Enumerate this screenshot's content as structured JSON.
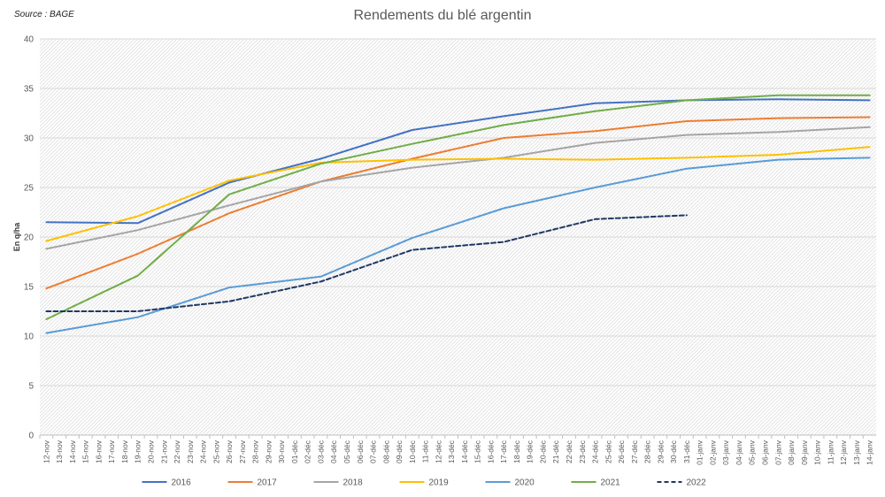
{
  "source": "Source : BAGE",
  "chart_data": {
    "type": "line",
    "title": "Rendements du blé argentin",
    "xlabel": "",
    "ylabel": "En q/ha",
    "ylim": [
      0,
      40
    ],
    "yticks": [
      0,
      5,
      10,
      15,
      20,
      25,
      30,
      35,
      40
    ],
    "grid": true,
    "legend_position": "bottom",
    "categories": [
      "12-nov",
      "13-nov",
      "14-nov",
      "15-nov",
      "16-nov",
      "17-nov",
      "18-nov",
      "19-nov",
      "20-nov",
      "21-nov",
      "22-nov",
      "23-nov",
      "24-nov",
      "25-nov",
      "26-nov",
      "27-nov",
      "28-nov",
      "29-nov",
      "30-nov",
      "01-déc",
      "02-déc",
      "03-déc",
      "04-déc",
      "05-déc",
      "06-déc",
      "07-déc",
      "08-déc",
      "09-déc",
      "10-déc",
      "11-déc",
      "12-déc",
      "13-déc",
      "14-déc",
      "15-déc",
      "16-déc",
      "17-déc",
      "18-déc",
      "19-déc",
      "20-déc",
      "21-déc",
      "22-déc",
      "23-déc",
      "24-déc",
      "25-déc",
      "26-déc",
      "27-déc",
      "28-déc",
      "29-déc",
      "30-déc",
      "31-déc",
      "01-janv",
      "02-janv",
      "03-janv",
      "04-janv",
      "05-janv",
      "06-janv",
      "07-janv",
      "08-janv",
      "09-janv",
      "10-janv",
      "11-janv",
      "12-janv",
      "13-janv",
      "14-janv"
    ],
    "series": [
      {
        "name": "2016",
        "color": "#4472C4",
        "dash": false,
        "points": [
          [
            "12-nov",
            21.5
          ],
          [
            "19-nov",
            21.4
          ],
          [
            "26-nov",
            25.5
          ],
          [
            "03-déc",
            27.9
          ],
          [
            "10-déc",
            30.8
          ],
          [
            "17-déc",
            32.2
          ],
          [
            "24-déc",
            33.5
          ],
          [
            "31-déc",
            33.8
          ],
          [
            "07-janv",
            33.9
          ],
          [
            "14-janv",
            33.8
          ]
        ]
      },
      {
        "name": "2017",
        "color": "#ED7D31",
        "dash": false,
        "points": [
          [
            "12-nov",
            14.8
          ],
          [
            "19-nov",
            18.3
          ],
          [
            "26-nov",
            22.4
          ],
          [
            "03-déc",
            25.6
          ],
          [
            "10-déc",
            27.9
          ],
          [
            "17-déc",
            30.0
          ],
          [
            "24-déc",
            30.7
          ],
          [
            "31-déc",
            31.7
          ],
          [
            "07-janv",
            32.0
          ],
          [
            "14-janv",
            32.1
          ]
        ]
      },
      {
        "name": "2018",
        "color": "#A5A5A5",
        "dash": false,
        "points": [
          [
            "12-nov",
            18.8
          ],
          [
            "19-nov",
            20.7
          ],
          [
            "26-nov",
            23.2
          ],
          [
            "03-déc",
            25.6
          ],
          [
            "10-déc",
            27.0
          ],
          [
            "17-déc",
            28.0
          ],
          [
            "24-déc",
            29.5
          ],
          [
            "31-déc",
            30.3
          ],
          [
            "07-janv",
            30.6
          ],
          [
            "14-janv",
            31.1
          ]
        ]
      },
      {
        "name": "2019",
        "color": "#FFC000",
        "dash": false,
        "points": [
          [
            "12-nov",
            19.6
          ],
          [
            "19-nov",
            22.1
          ],
          [
            "26-nov",
            25.7
          ],
          [
            "03-déc",
            27.5
          ],
          [
            "10-déc",
            27.8
          ],
          [
            "17-déc",
            27.9
          ],
          [
            "24-déc",
            27.8
          ],
          [
            "31-déc",
            28.0
          ],
          [
            "07-janv",
            28.3
          ],
          [
            "14-janv",
            29.1
          ]
        ]
      },
      {
        "name": "2020",
        "color": "#5B9BD5",
        "dash": false,
        "points": [
          [
            "12-nov",
            10.3
          ],
          [
            "19-nov",
            11.9
          ],
          [
            "26-nov",
            14.9
          ],
          [
            "03-déc",
            16.0
          ],
          [
            "10-déc",
            19.9
          ],
          [
            "17-déc",
            22.9
          ],
          [
            "24-déc",
            25.0
          ],
          [
            "31-déc",
            26.9
          ],
          [
            "07-janv",
            27.8
          ],
          [
            "14-janv",
            28.0
          ]
        ]
      },
      {
        "name": "2021",
        "color": "#70AD47",
        "dash": false,
        "points": [
          [
            "12-nov",
            11.7
          ],
          [
            "19-nov",
            16.1
          ],
          [
            "26-nov",
            24.3
          ],
          [
            "03-déc",
            27.4
          ],
          [
            "10-déc",
            29.4
          ],
          [
            "17-déc",
            31.3
          ],
          [
            "24-déc",
            32.7
          ],
          [
            "31-déc",
            33.8
          ],
          [
            "07-janv",
            34.3
          ],
          [
            "14-janv",
            34.3
          ]
        ]
      },
      {
        "name": "2022",
        "color": "#203864",
        "dash": true,
        "points": [
          [
            "12-nov",
            12.5
          ],
          [
            "19-nov",
            12.5
          ],
          [
            "26-nov",
            13.5
          ],
          [
            "03-déc",
            15.5
          ],
          [
            "10-déc",
            18.7
          ],
          [
            "17-déc",
            19.5
          ],
          [
            "24-déc",
            21.8
          ],
          [
            "31-déc",
            22.2
          ]
        ]
      }
    ]
  }
}
